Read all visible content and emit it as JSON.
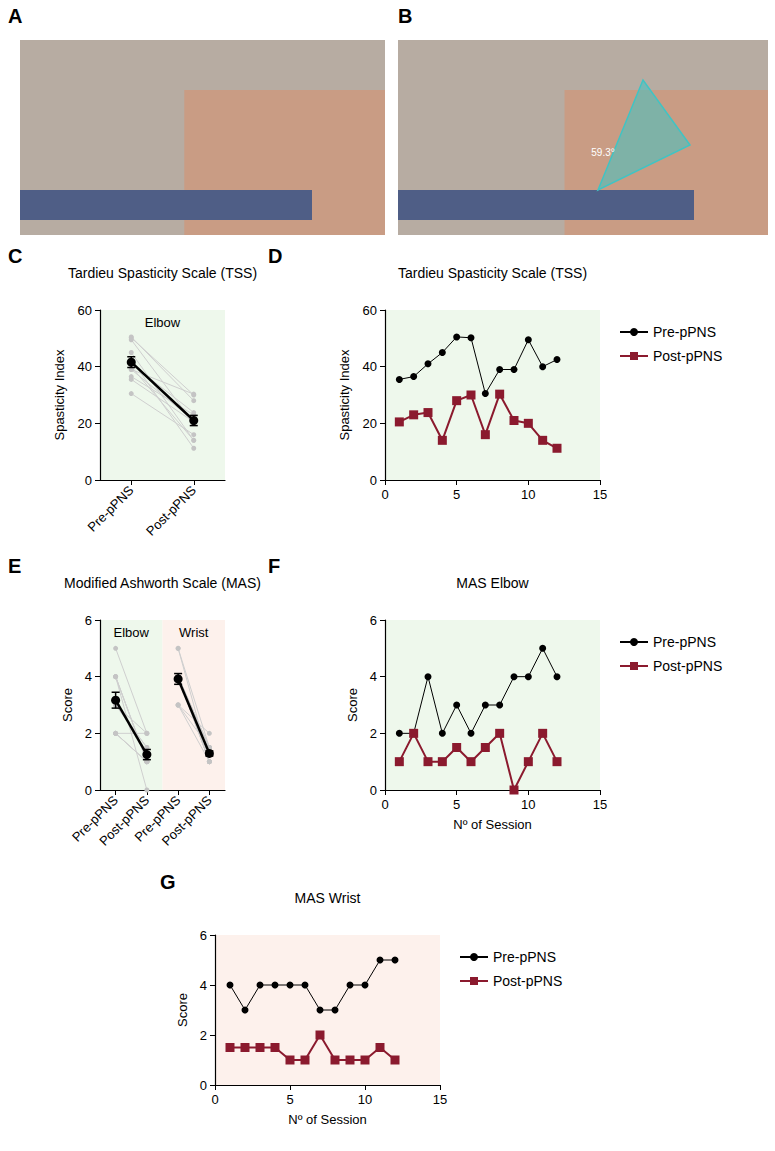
{
  "photos": [
    {
      "letter": "A"
    },
    {
      "letter": "B",
      "annotation": "59.3°"
    }
  ],
  "chart_data": [
    {
      "letter": "C",
      "type": "paired",
      "title": "Tardieu Spasticity Scale (TSS)",
      "y_label": "Spasticity Index",
      "categories": [
        "Pre-pPNS",
        "Post-pPNS"
      ],
      "ylim": [
        0,
        60
      ],
      "yticks": [
        0,
        20,
        40,
        60
      ],
      "grid": false,
      "groups": [
        {
          "name": "Elbow",
          "color": "#eef8ec",
          "individual": [
            [
              35.5,
              20.5
            ],
            [
              36.5,
              23
            ],
            [
              41,
              23.8
            ],
            [
              45,
              14
            ],
            [
              50.5,
              28
            ],
            [
              50.2,
              30
            ],
            [
              30.5,
              16
            ],
            [
              39,
              30.3
            ],
            [
              39,
              21
            ],
            [
              49.5,
              20
            ],
            [
              40,
              14
            ],
            [
              42.5,
              11.2
            ]
          ],
          "mean": [
            41.6,
            21.0
          ],
          "sem": [
            1.9,
            1.8
          ]
        }
      ]
    },
    {
      "letter": "D",
      "type": "line",
      "title": "Tardieu Spasticity Scale (TSS)",
      "y_label": "Spasticity Index",
      "x": [
        1,
        2,
        3,
        4,
        5,
        6,
        7,
        8,
        9,
        10,
        11,
        12
      ],
      "xlim": [
        0,
        15
      ],
      "xticks": [
        0,
        5,
        10,
        15
      ],
      "ylim": [
        0,
        60
      ],
      "yticks": [
        0,
        20,
        40,
        60
      ],
      "grid": false,
      "legend": "right",
      "color": "#eef8ec",
      "series": [
        {
          "name": "Pre-pPNS",
          "color": "#000000",
          "marker": "circle",
          "line_style": "solid",
          "values": [
            35.5,
            36.5,
            41,
            45,
            50.5,
            50.2,
            30.5,
            39,
            39,
            49.5,
            40,
            42.5
          ]
        },
        {
          "name": "Post-pPNS",
          "color": "#8b1a2e",
          "marker": "square",
          "line_style": "solid",
          "values": [
            20.5,
            23,
            23.8,
            14,
            28,
            30,
            16,
            30.3,
            21,
            20,
            14,
            11.2
          ]
        }
      ]
    },
    {
      "letter": "E",
      "type": "paired",
      "title": "Modified Ashworth Scale (MAS)",
      "y_label": "Score",
      "categories": [
        "Pre-pPNS",
        "Post-pPNS",
        "Pre-pPNS",
        "Post-pPNS"
      ],
      "ylim": [
        0,
        6
      ],
      "yticks": [
        0,
        2,
        4,
        6
      ],
      "grid": false,
      "groups": [
        {
          "name": "Elbow",
          "color": "#eef8ec",
          "individual": [
            [
              2,
              1
            ],
            [
              2,
              2
            ],
            [
              4,
              1
            ],
            [
              2,
              1
            ],
            [
              3,
              1.5
            ],
            [
              2,
              1
            ],
            [
              3,
              1.5
            ],
            [
              3,
              2
            ],
            [
              4,
              0
            ],
            [
              4,
              1
            ],
            [
              5,
              2
            ],
            [
              4,
              1
            ]
          ],
          "mean": [
            3.17,
            1.25
          ],
          "sem": [
            0.28,
            0.18
          ]
        },
        {
          "name": "Wrist",
          "color": "#fdf1ec",
          "individual": [
            [
              4,
              1.5
            ],
            [
              3,
              1.5
            ],
            [
              4,
              1.5
            ],
            [
              4,
              1.5
            ],
            [
              4,
              1
            ],
            [
              4,
              1
            ],
            [
              3,
              2
            ],
            [
              3,
              1
            ],
            [
              4,
              1
            ],
            [
              4,
              1
            ],
            [
              5,
              1.5
            ],
            [
              5,
              1
            ]
          ],
          "mean": [
            3.92,
            1.29
          ],
          "sem": [
            0.19,
            0.09
          ]
        }
      ]
    },
    {
      "letter": "F",
      "type": "line",
      "title": "MAS Elbow",
      "y_label": "Score",
      "x_label": "Nº of Session",
      "x": [
        1,
        2,
        3,
        4,
        5,
        6,
        7,
        8,
        9,
        10,
        11,
        12
      ],
      "xlim": [
        0,
        15
      ],
      "xticks": [
        0,
        5,
        10,
        15
      ],
      "ylim": [
        0,
        6
      ],
      "yticks": [
        0,
        2,
        4,
        6
      ],
      "grid": false,
      "legend": "right",
      "color": "#eef8ec",
      "series": [
        {
          "name": "Pre-pPNS",
          "color": "#000000",
          "marker": "circle",
          "line_style": "solid",
          "values": [
            2,
            2,
            4,
            2,
            3,
            2,
            3,
            3,
            4,
            4,
            5,
            4
          ]
        },
        {
          "name": "Post-pPNS",
          "color": "#8b1a2e",
          "marker": "square",
          "line_style": "solid",
          "values": [
            1,
            2,
            1,
            1,
            1.5,
            1,
            1.5,
            2,
            0,
            1,
            2,
            1
          ]
        }
      ]
    },
    {
      "letter": "G",
      "type": "line",
      "title": "MAS Wrist",
      "y_label": "Score",
      "x_label": "Nº of Session",
      "x": [
        1,
        2,
        3,
        4,
        5,
        6,
        7,
        8,
        9,
        10,
        11,
        12
      ],
      "xlim": [
        0,
        15
      ],
      "xticks": [
        0,
        5,
        10,
        15
      ],
      "ylim": [
        0,
        6
      ],
      "yticks": [
        0,
        2,
        4,
        6
      ],
      "grid": false,
      "legend": "right",
      "color": "#fdf1ec",
      "series": [
        {
          "name": "Pre-pPNS",
          "color": "#000000",
          "marker": "circle",
          "line_style": "solid",
          "values": [
            4,
            3,
            4,
            4,
            4,
            4,
            3,
            3,
            4,
            4,
            5,
            5
          ]
        },
        {
          "name": "Post-pPNS",
          "color": "#8b1a2e",
          "marker": "square",
          "line_style": "solid",
          "values": [
            1.5,
            1.5,
            1.5,
            1.5,
            1,
            1,
            2,
            1,
            1,
            1,
            1.5,
            1
          ]
        }
      ]
    }
  ]
}
